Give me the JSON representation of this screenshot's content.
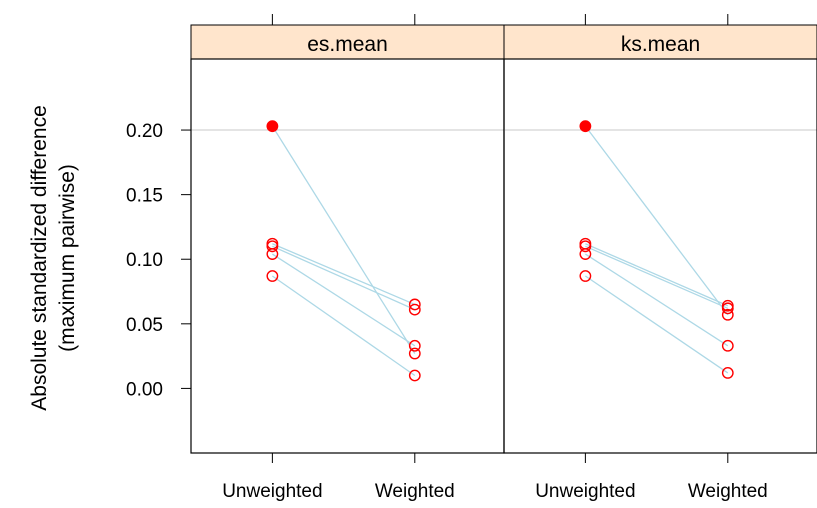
{
  "chart_data": {
    "type": "scatter",
    "ylabel_line1": "Absolute standardized difference",
    "ylabel_line2": "(maximum pairwise)",
    "categories": [
      "Unweighted",
      "Weighted"
    ],
    "y_ticks": [
      "0.00",
      "0.05",
      "0.10",
      "0.15",
      "0.20"
    ],
    "ylim": [
      -0.05,
      0.255
    ],
    "reference_line": 0.2,
    "colors": {
      "strip": "#FFE5CC",
      "line": "#ADD8E6",
      "point": "#FF0000",
      "refline": "#C8C8C8"
    },
    "panels": [
      {
        "title": "es.mean",
        "series": [
          {
            "values": [
              0.203,
              0.027
            ],
            "significant": true
          },
          {
            "values": [
              0.112,
              0.065
            ],
            "significant": false
          },
          {
            "values": [
              0.11,
              0.061
            ],
            "significant": false
          },
          {
            "values": [
              0.104,
              0.033
            ],
            "significant": false
          },
          {
            "values": [
              0.087,
              0.01
            ],
            "significant": false
          }
        ]
      },
      {
        "title": "ks.mean",
        "series": [
          {
            "values": [
              0.203,
              0.057
            ],
            "significant": true
          },
          {
            "values": [
              0.112,
              0.064
            ],
            "significant": false
          },
          {
            "values": [
              0.11,
              0.062
            ],
            "significant": false
          },
          {
            "values": [
              0.104,
              0.033
            ],
            "significant": false
          },
          {
            "values": [
              0.087,
              0.012
            ],
            "significant": false
          }
        ]
      }
    ]
  }
}
